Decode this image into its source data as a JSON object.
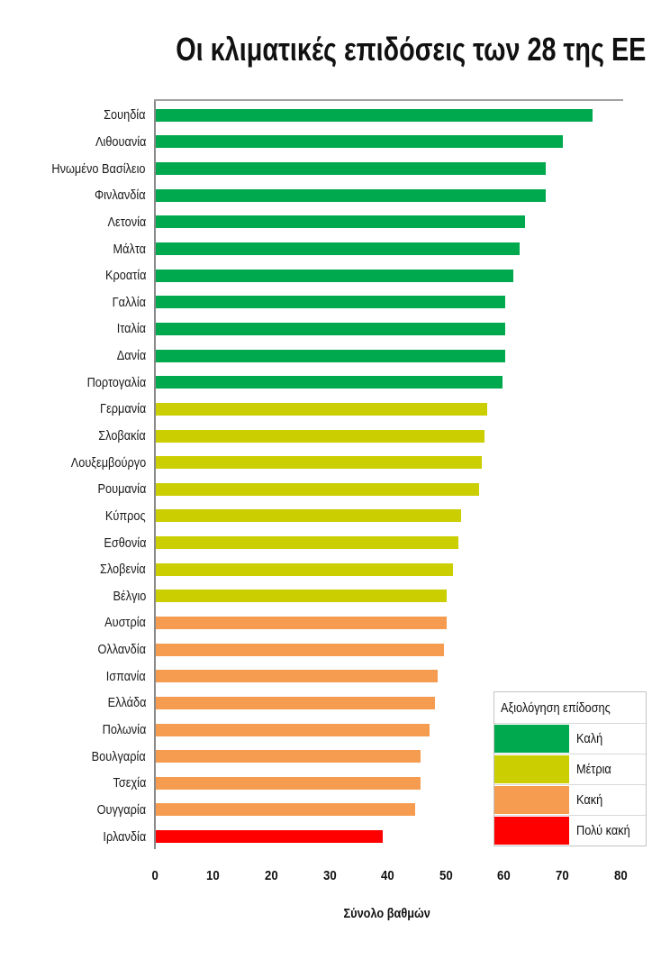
{
  "chart_data": {
    "type": "bar",
    "orientation": "horizontal",
    "title": "Οι κλιματικές επιδόσεις των 28 της ΕΕ",
    "xlabel": "Σύνολο βαθμών",
    "ylabel": "",
    "xlim": [
      0,
      80
    ],
    "xticks": [
      0,
      10,
      20,
      30,
      40,
      50,
      60,
      70,
      80
    ],
    "grid": false,
    "categories": [
      "Σουηδία",
      "Λιθουανία",
      "Ηνωμένο Βασίλειο",
      "Φινλανδία",
      "Λετονία",
      "Μάλτα",
      "Κροατία",
      "Γαλλία",
      "Ιταλία",
      "Δανία",
      "Πορτογαλία",
      "Γερμανία",
      "Σλοβακία",
      "Λουξεμβούργο",
      "Ρουμανία",
      "Κύπρος",
      "Εσθονία",
      "Σλοβενία",
      "Βέλγιο",
      "Αυστρία",
      "Ολλανδία",
      "Ισπανία",
      "Ελλάδα",
      "Πολωνία",
      "Βουλγαρία",
      "Τσεχία",
      "Ουγγαρία",
      "Ιρλανδία"
    ],
    "values": [
      75,
      70,
      67,
      67,
      63.5,
      62.5,
      61.5,
      60,
      60,
      60,
      59.5,
      57,
      56.5,
      56,
      55.5,
      52.5,
      52,
      51,
      50,
      50,
      49.5,
      48.5,
      48,
      47,
      45.5,
      45.5,
      44.5,
      39
    ],
    "ratings": [
      "good",
      "good",
      "good",
      "good",
      "good",
      "good",
      "good",
      "good",
      "good",
      "good",
      "good",
      "moderate",
      "moderate",
      "moderate",
      "moderate",
      "moderate",
      "moderate",
      "moderate",
      "moderate",
      "bad",
      "bad",
      "bad",
      "bad",
      "bad",
      "bad",
      "bad",
      "bad",
      "very_bad"
    ],
    "colors": {
      "good": "#00A84E",
      "moderate": "#CBCE00",
      "bad": "#F59C50",
      "very_bad": "#FF0000"
    },
    "axis_line_color": "#8a8a8a",
    "legend": {
      "position": "bottom-right",
      "title": "Αξιολόγηση επίδοσης",
      "entries": [
        {
          "label": "Καλή",
          "rating": "good"
        },
        {
          "label": "Μέτρια",
          "rating": "moderate"
        },
        {
          "label": "Κακή",
          "rating": "bad"
        },
        {
          "label": "Πολύ κακή",
          "rating": "very_bad"
        }
      ]
    }
  }
}
